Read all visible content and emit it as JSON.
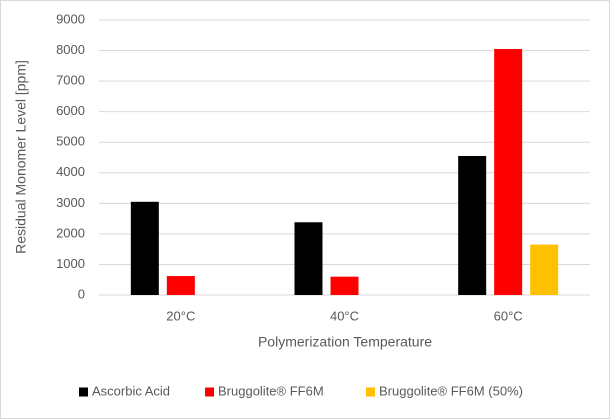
{
  "chart_data": {
    "type": "bar",
    "x_label": "Polymerization Temperature",
    "y_label": "Residual Monomer Level [ppm]",
    "categories": [
      "20°C",
      "40°C",
      "60°C"
    ],
    "series": [
      {
        "name": "Ascorbic Acid",
        "color": "#000000",
        "values": [
          3050,
          2380,
          4550
        ]
      },
      {
        "name": "Bruggolite® FF6M",
        "color": "#ff0000",
        "values": [
          620,
          600,
          8050
        ]
      },
      {
        "name": "Bruggolite® FF6M (50%)",
        "color": "#ffc000",
        "values": [
          null,
          null,
          1650
        ]
      }
    ],
    "ylim": [
      0,
      9000
    ],
    "yticks": [
      0,
      1000,
      2000,
      3000,
      4000,
      5000,
      6000,
      7000,
      8000,
      9000
    ],
    "grid": true,
    "legend": "bottom"
  }
}
